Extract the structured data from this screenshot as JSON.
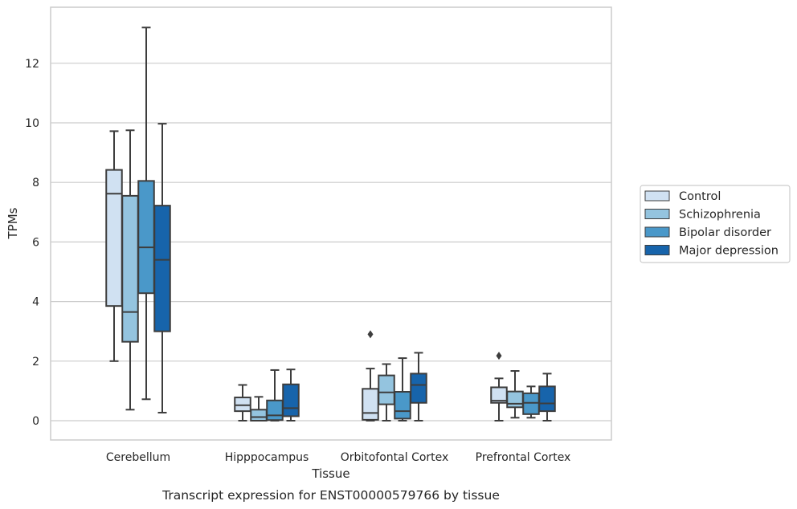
{
  "chart_data": {
    "type": "box",
    "title": "",
    "caption": "Transcript expression for ENST00000579766 by tissue",
    "xlabel": "Tissue",
    "ylabel": "TPMs",
    "ylim": [
      -0.65,
      13.8
    ],
    "yticks": [
      0,
      2,
      4,
      6,
      8,
      10,
      12
    ],
    "grid": "horizontal",
    "legend_position": "right",
    "categories": [
      "Cerebellum",
      "Hipppocampus",
      "Orbitofontal Cortex",
      "Prefrontal Cortex"
    ],
    "series": [
      {
        "name": "Control",
        "color": "#d0e1f2",
        "boxes": [
          {
            "whisker_low": 2.0,
            "q1": 3.85,
            "median": 7.62,
            "q3": 8.42,
            "whisker_high": 9.72,
            "outliers": []
          },
          {
            "whisker_low": 0.0,
            "q1": 0.32,
            "median": 0.52,
            "q3": 0.78,
            "whisker_high": 1.2,
            "outliers": []
          },
          {
            "whisker_low": 0.0,
            "q1": 0.03,
            "median": 0.26,
            "q3": 1.07,
            "whisker_high": 1.75,
            "outliers": [
              2.9
            ]
          },
          {
            "whisker_low": 0.0,
            "q1": 0.6,
            "median": 0.67,
            "q3": 1.12,
            "whisker_high": 1.42,
            "outliers": [
              2.18
            ]
          }
        ]
      },
      {
        "name": "Schizophrenia",
        "color": "#94c4df",
        "boxes": [
          {
            "whisker_low": 0.37,
            "q1": 2.65,
            "median": 3.65,
            "q3": 7.55,
            "whisker_high": 9.75,
            "outliers": []
          },
          {
            "whisker_low": 0.0,
            "q1": 0.0,
            "median": 0.12,
            "q3": 0.37,
            "whisker_high": 0.8,
            "outliers": []
          },
          {
            "whisker_low": 0.0,
            "q1": 0.55,
            "median": 0.95,
            "q3": 1.52,
            "whisker_high": 1.9,
            "outliers": []
          },
          {
            "whisker_low": 0.1,
            "q1": 0.45,
            "median": 0.57,
            "q3": 0.98,
            "whisker_high": 1.67,
            "outliers": []
          }
        ]
      },
      {
        "name": "Bipolar disorder",
        "color": "#4a98c9",
        "boxes": [
          {
            "whisker_low": 0.72,
            "q1": 4.28,
            "median": 5.82,
            "q3": 8.05,
            "whisker_high": 13.2,
            "outliers": []
          },
          {
            "whisker_low": 0.0,
            "q1": 0.02,
            "median": 0.18,
            "q3": 0.68,
            "whisker_high": 1.7,
            "outliers": []
          },
          {
            "whisker_low": 0.0,
            "q1": 0.07,
            "median": 0.32,
            "q3": 0.97,
            "whisker_high": 2.1,
            "outliers": []
          },
          {
            "whisker_low": 0.1,
            "q1": 0.22,
            "median": 0.6,
            "q3": 0.92,
            "whisker_high": 1.15,
            "outliers": []
          }
        ]
      },
      {
        "name": "Major depression",
        "color": "#1764ab",
        "boxes": [
          {
            "whisker_low": 0.27,
            "q1": 3.0,
            "median": 5.4,
            "q3": 7.22,
            "whisker_high": 9.97,
            "outliers": []
          },
          {
            "whisker_low": 0.0,
            "q1": 0.15,
            "median": 0.42,
            "q3": 1.22,
            "whisker_high": 1.72,
            "outliers": []
          },
          {
            "whisker_low": 0.0,
            "q1": 0.6,
            "median": 1.2,
            "q3": 1.58,
            "whisker_high": 2.28,
            "outliers": []
          },
          {
            "whisker_low": 0.0,
            "q1": 0.32,
            "median": 0.58,
            "q3": 1.15,
            "whisker_high": 1.58,
            "outliers": []
          }
        ]
      }
    ]
  }
}
